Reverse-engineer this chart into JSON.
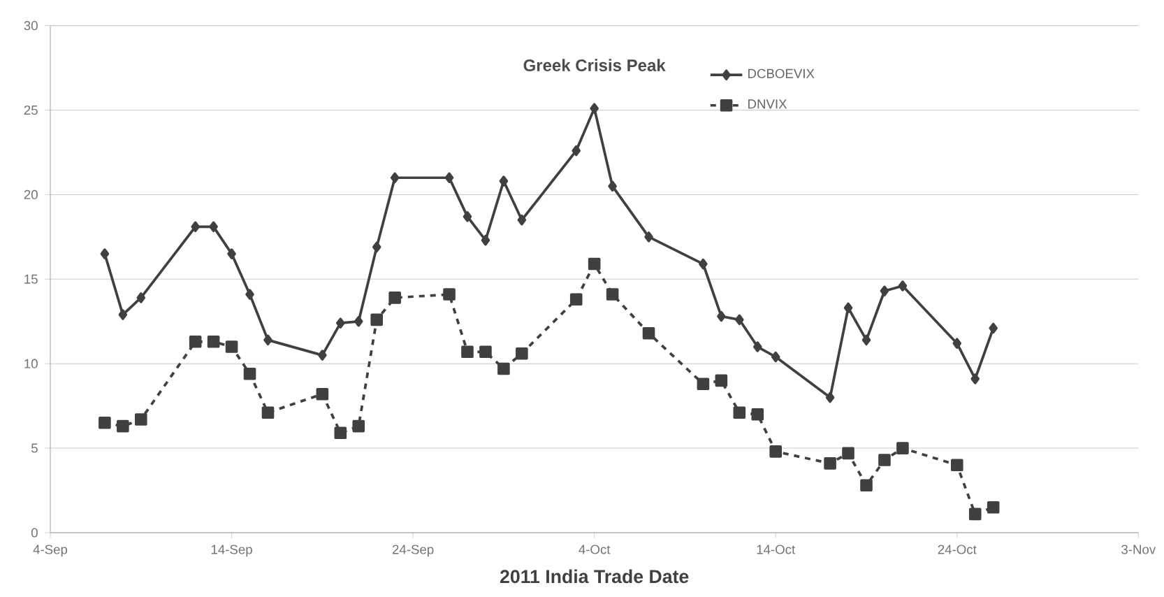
{
  "chart_data": {
    "type": "line",
    "title": "Greek Crisis Peak",
    "xlabel": "2011 India Trade Date",
    "x": [
      "2011-09-07",
      "2011-09-08",
      "2011-09-09",
      "2011-09-12",
      "2011-09-13",
      "2011-09-14",
      "2011-09-15",
      "2011-09-16",
      "2011-09-19",
      "2011-09-20",
      "2011-09-21",
      "2011-09-22",
      "2011-09-23",
      "2011-09-26",
      "2011-09-27",
      "2011-09-28",
      "2011-09-29",
      "2011-09-30",
      "2011-10-03",
      "2011-10-04",
      "2011-10-05",
      "2011-10-07",
      "2011-10-10",
      "2011-10-11",
      "2011-10-12",
      "2011-10-13",
      "2011-10-14",
      "2011-10-17",
      "2011-10-18",
      "2011-10-19",
      "2011-10-20",
      "2011-10-21",
      "2011-10-24",
      "2011-10-25",
      "2011-10-26"
    ],
    "series": [
      {
        "name": "DCBOEVIX",
        "color": "#404040",
        "marker": "diamond",
        "line_style": "solid",
        "values": [
          16.5,
          12.9,
          13.9,
          18.1,
          18.1,
          16.5,
          14.1,
          11.4,
          10.5,
          12.4,
          12.5,
          16.9,
          21.0,
          21.0,
          18.7,
          17.3,
          20.8,
          18.5,
          22.6,
          25.1,
          20.5,
          17.5,
          15.9,
          12.8,
          12.6,
          11.0,
          10.4,
          8.0,
          13.3,
          11.4,
          14.3,
          14.6,
          11.2,
          9.1,
          12.1
        ]
      },
      {
        "name": "DNVIX",
        "color": "#404040",
        "marker": "square",
        "line_style": "dashed",
        "values": [
          6.5,
          6.3,
          6.7,
          11.3,
          11.3,
          11.0,
          9.4,
          7.1,
          8.2,
          5.9,
          6.3,
          12.6,
          13.9,
          14.1,
          10.7,
          10.7,
          9.7,
          10.6,
          13.8,
          15.9,
          14.1,
          11.8,
          8.8,
          9.0,
          7.1,
          7.0,
          4.8,
          4.1,
          4.7,
          2.8,
          4.3,
          5.0,
          4.0,
          1.1,
          1.5
        ]
      }
    ],
    "xlim": [
      "2011-09-04",
      "2011-11-03"
    ],
    "xticks": [
      {
        "value": "2011-09-04",
        "label": "4-Sep"
      },
      {
        "value": "2011-09-14",
        "label": "14-Sep"
      },
      {
        "value": "2011-09-24",
        "label": "24-Sep"
      },
      {
        "value": "2011-10-04",
        "label": "4-Oct"
      },
      {
        "value": "2011-10-14",
        "label": "14-Oct"
      },
      {
        "value": "2011-10-24",
        "label": "24-Oct"
      },
      {
        "value": "2011-11-03",
        "label": "3-Nov"
      }
    ],
    "ylim": [
      0,
      30
    ],
    "yticks": [
      0,
      5,
      10,
      15,
      20,
      25,
      30
    ],
    "grid": "y",
    "legend": "top right"
  }
}
